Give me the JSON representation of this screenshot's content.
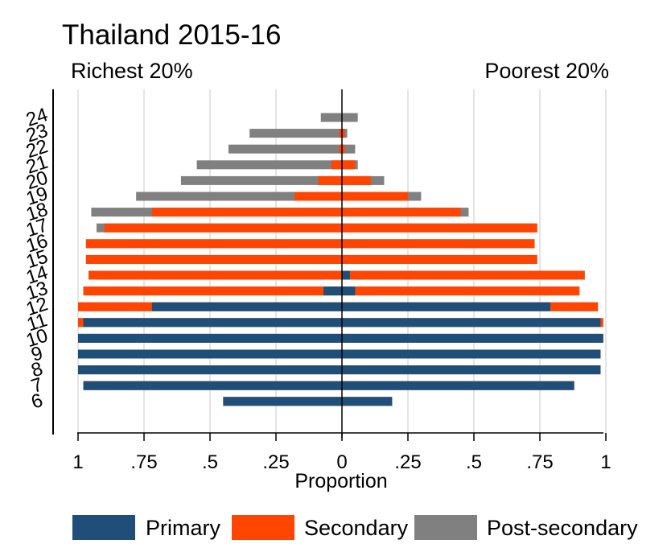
{
  "chart_data": {
    "type": "bar",
    "orientation": "horizontal-back-to-back",
    "title": "Thailand 2015-16",
    "left_label": "Richest 20%",
    "right_label": "Poorest 20%",
    "xlabel": "Proportion",
    "x_ticks": [
      "1",
      ".75",
      ".5",
      ".25",
      "0",
      ".25",
      ".5",
      ".75",
      "1"
    ],
    "xlim": [
      -1,
      1
    ],
    "grid": true,
    "legend_position": "bottom",
    "categories": [
      "24",
      "23",
      "22",
      "21",
      "20",
      "19",
      "18",
      "17",
      "16",
      "15",
      "14",
      "13",
      "12",
      "11",
      "10",
      "9",
      "8",
      "7",
      "6"
    ],
    "series": [
      {
        "name": "Primary",
        "color": "#1f4e79",
        "richest": [
          0,
          0,
          0,
          0,
          0,
          0,
          0,
          0,
          0,
          0,
          0,
          0.07,
          0.72,
          0.98,
          1.0,
          1.0,
          1.0,
          0.98,
          0.45
        ],
        "poorest": [
          0,
          0,
          0,
          0,
          0,
          0,
          0,
          0,
          0,
          0,
          0.03,
          0.05,
          0.79,
          0.98,
          0.99,
          0.98,
          0.98,
          0.88,
          0.19
        ]
      },
      {
        "name": "Secondary",
        "color": "#ff4500",
        "richest": [
          0,
          0.01,
          0.01,
          0.04,
          0.09,
          0.18,
          0.72,
          0.9,
          0.97,
          0.97,
          0.96,
          0.98,
          1.0,
          1.0,
          1.0,
          1.0,
          1.0,
          0.98,
          0.45
        ],
        "poorest": [
          0,
          0.01,
          0.01,
          0.05,
          0.11,
          0.25,
          0.45,
          0.74,
          0.73,
          0.74,
          0.92,
          0.9,
          0.97,
          0.99,
          0.99,
          0.98,
          0.98,
          0.88,
          0.19
        ]
      },
      {
        "name": "Post-secondary",
        "color": "#808080",
        "richest": [
          0.08,
          0.35,
          0.43,
          0.55,
          0.61,
          0.78,
          0.95,
          0.93,
          0.97,
          0.97,
          0.96,
          0.98,
          1.0,
          1.0,
          1.0,
          1.0,
          1.0,
          0.98,
          0.45
        ],
        "poorest": [
          0.06,
          0.02,
          0.05,
          0.06,
          0.16,
          0.3,
          0.48,
          0.74,
          0.73,
          0.74,
          0.92,
          0.9,
          0.97,
          0.99,
          0.99,
          0.98,
          0.98,
          0.88,
          0.19
        ]
      }
    ]
  }
}
